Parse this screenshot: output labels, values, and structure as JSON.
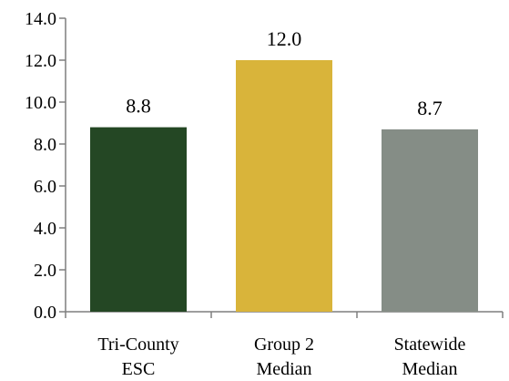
{
  "chart_data": {
    "type": "bar",
    "categories": [
      [
        "Tri-County",
        "ESC"
      ],
      [
        "Group 2",
        "Median"
      ],
      [
        "Statewide",
        "Median"
      ]
    ],
    "values": [
      8.8,
      12.0,
      8.7
    ],
    "value_labels": [
      "8.8",
      "12.0",
      "8.7"
    ],
    "colors": [
      "#244724",
      "#d9b43a",
      "#858d86"
    ],
    "ylim": [
      0,
      14
    ],
    "yticks": [
      "0.0",
      "2.0",
      "4.0",
      "6.0",
      "8.0",
      "10.0",
      "12.0",
      "14.0"
    ],
    "title": "",
    "xlabel": "",
    "ylabel": "",
    "grid": false,
    "legend": "none"
  }
}
